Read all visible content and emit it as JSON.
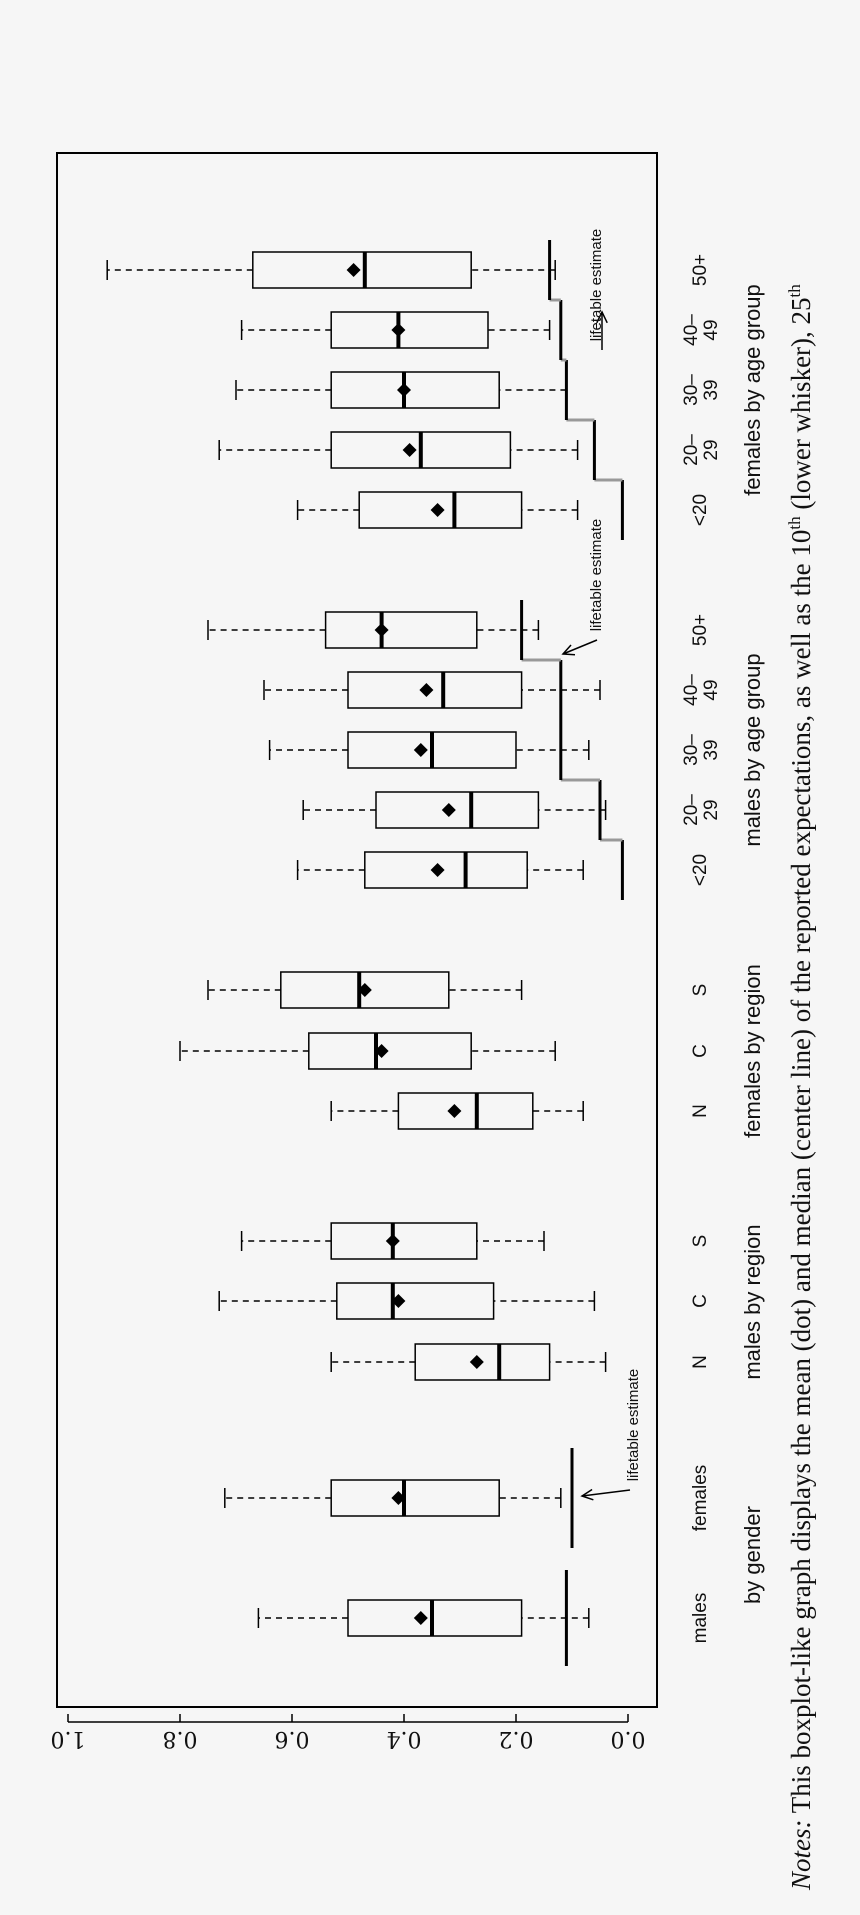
{
  "chart_data": {
    "type": "boxplot",
    "xlim": [
      0,
      1.0
    ],
    "ticks": [
      "0.0",
      "0.2",
      "0.4",
      "0.6",
      "0.8",
      "1.0"
    ],
    "tick_values": [
      0,
      0.2,
      0.4,
      0.6,
      0.8,
      1.0
    ],
    "series": [
      {
        "name": "males",
        "p10": 0.07,
        "q1": 0.19,
        "median": 0.35,
        "q3": 0.5,
        "p90": 0.66,
        "mean": 0.37,
        "lifetable": 0.11
      },
      {
        "name": "females",
        "p10": 0.12,
        "q1": 0.23,
        "median": 0.4,
        "q3": 0.53,
        "p90": 0.72,
        "mean": 0.41,
        "lifetable": 0.1
      },
      {
        "name": "N",
        "p10": 0.04,
        "q1": 0.14,
        "median": 0.23,
        "q3": 0.38,
        "p90": 0.53,
        "mean": 0.27
      },
      {
        "name": "C",
        "p10": 0.06,
        "q1": 0.24,
        "median": 0.42,
        "q3": 0.52,
        "p90": 0.73,
        "mean": 0.41
      },
      {
        "name": "S",
        "p10": 0.15,
        "q1": 0.27,
        "median": 0.42,
        "q3": 0.53,
        "p90": 0.69,
        "mean": 0.42
      },
      {
        "name": "N",
        "p10": 0.08,
        "q1": 0.17,
        "median": 0.27,
        "q3": 0.41,
        "p90": 0.53,
        "mean": 0.31
      },
      {
        "name": "C",
        "p10": 0.13,
        "q1": 0.28,
        "median": 0.45,
        "q3": 0.57,
        "p90": 0.8,
        "mean": 0.44
      },
      {
        "name": "S",
        "p10": 0.19,
        "q1": 0.32,
        "median": 0.48,
        "q3": 0.62,
        "p90": 0.75,
        "mean": 0.47
      },
      {
        "name": "<20",
        "p10": 0.08,
        "q1": 0.18,
        "median": 0.29,
        "q3": 0.47,
        "p90": 0.59,
        "mean": 0.34,
        "lifetable": 0.01
      },
      {
        "name": "20–\n29",
        "p10": 0.04,
        "q1": 0.16,
        "median": 0.28,
        "q3": 0.45,
        "p90": 0.58,
        "mean": 0.32,
        "lifetable": 0.05
      },
      {
        "name": "30–\n39",
        "p10": 0.07,
        "q1": 0.2,
        "median": 0.35,
        "q3": 0.5,
        "p90": 0.64,
        "mean": 0.37,
        "lifetable": 0.12
      },
      {
        "name": "40–\n49",
        "p10": 0.05,
        "q1": 0.19,
        "median": 0.33,
        "q3": 0.5,
        "p90": 0.65,
        "mean": 0.36,
        "lifetable": 0.12
      },
      {
        "name": "50+",
        "p10": 0.16,
        "q1": 0.27,
        "median": 0.44,
        "q3": 0.54,
        "p90": 0.75,
        "mean": 0.44,
        "lifetable": 0.19
      },
      {
        "name": "<20",
        "p10": 0.09,
        "q1": 0.19,
        "median": 0.31,
        "q3": 0.48,
        "p90": 0.59,
        "mean": 0.34,
        "lifetable": 0.01
      },
      {
        "name": "20–\n29",
        "p10": 0.09,
        "q1": 0.21,
        "median": 0.37,
        "q3": 0.53,
        "p90": 0.73,
        "mean": 0.39,
        "lifetable": 0.06
      },
      {
        "name": "30–\n39",
        "p10": 0.11,
        "q1": 0.23,
        "median": 0.4,
        "q3": 0.53,
        "p90": 0.7,
        "mean": 0.4,
        "lifetable": 0.11
      },
      {
        "name": "40–\n49",
        "p10": 0.14,
        "q1": 0.25,
        "median": 0.41,
        "q3": 0.53,
        "p90": 0.69,
        "mean": 0.41,
        "lifetable": 0.12
      },
      {
        "name": "50+",
        "p10": 0.13,
        "q1": 0.28,
        "median": 0.47,
        "q3": 0.67,
        "p90": 0.93,
        "mean": 0.49,
        "lifetable": 0.14
      }
    ],
    "groups": [
      {
        "label": "by gender",
        "members": [
          0,
          1
        ]
      },
      {
        "label": "males by region",
        "members": [
          2,
          3,
          4
        ]
      },
      {
        "label": "females by region",
        "members": [
          5,
          6,
          7
        ]
      },
      {
        "label": "males by age group",
        "members": [
          8,
          9,
          10,
          11,
          12
        ]
      },
      {
        "label": "females by age group",
        "members": [
          13,
          14,
          15,
          16,
          17
        ]
      }
    ],
    "annotations": [
      "lifetable estimate",
      "lifetable estimate",
      "lifetable estimate"
    ],
    "caption": {
      "italic": "Notes:",
      "text": " This boxplot-like graph displays the mean (dot) and median (center line) of the reported expectations, as well as the 10",
      "sup1": "th",
      "text2": " (lower whisker), 25",
      "sup2": "th"
    }
  }
}
